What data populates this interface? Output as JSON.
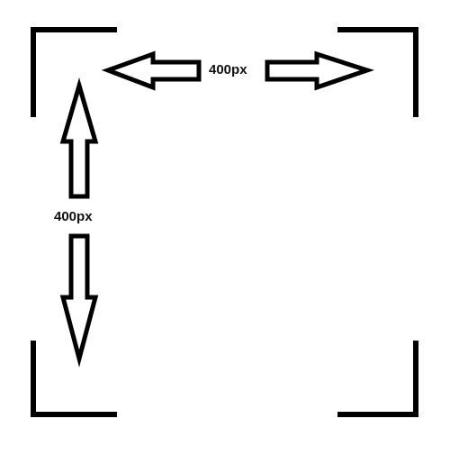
{
  "diagram": {
    "width_label": "400px",
    "height_label": "400px",
    "stroke_color": "#000000",
    "background_color": "#ffffff"
  }
}
